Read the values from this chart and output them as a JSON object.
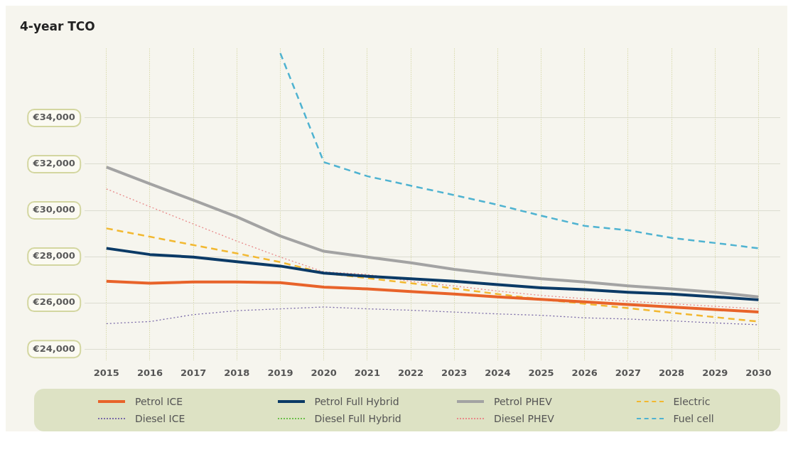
{
  "chart_data": {
    "type": "line",
    "title": "4-year TCO",
    "categories": [
      "2015",
      "2016",
      "2017",
      "2018",
      "2019",
      "2020",
      "2021",
      "2022",
      "2023",
      "2024",
      "2025",
      "2026",
      "2027",
      "2028",
      "2029",
      "2030"
    ],
    "ylim": [
      23500,
      37000
    ],
    "yticks": [
      {
        "value": 24000,
        "label": "€24,000"
      },
      {
        "value": 26000,
        "label": "€26,000"
      },
      {
        "value": 28000,
        "label": "€28,000"
      },
      {
        "value": 30000,
        "label": "€30,000"
      },
      {
        "value": 32000,
        "label": "€32,000"
      },
      {
        "value": 34000,
        "label": "€34,000"
      }
    ],
    "grid": true,
    "legend": "bottom",
    "marker": "none",
    "series": [
      {
        "name": "Petrol ICE",
        "color": "#e8632a",
        "line_style": "solid",
        "values": [
          26930,
          26850,
          26900,
          26900,
          26870,
          26680,
          26600,
          26490,
          26380,
          26260,
          26150,
          26040,
          25930,
          25820,
          25710,
          25600
        ]
      },
      {
        "name": "Petrol Full Hybrid",
        "color": "#0b3a66",
        "line_style": "solid",
        "values": [
          28360,
          28090,
          27980,
          27780,
          27590,
          27290,
          27150,
          27040,
          26930,
          26790,
          26650,
          26570,
          26460,
          26380,
          26260,
          26130
        ]
      },
      {
        "name": "Petrol PHEV",
        "color": "#a3a3a3",
        "line_style": "solid",
        "values": [
          31870,
          31150,
          30440,
          29720,
          28890,
          28230,
          27980,
          27730,
          27450,
          27230,
          27040,
          26900,
          26730,
          26600,
          26460,
          26260
        ]
      },
      {
        "name": "Electric",
        "color": "#f2b830",
        "line_style": "dashed",
        "values": [
          29220,
          28860,
          28500,
          28140,
          27760,
          27290,
          27070,
          26850,
          26620,
          26380,
          26150,
          25960,
          25770,
          25570,
          25380,
          25190
        ]
      },
      {
        "name": "Diesel ICE",
        "color": "#7a6aa8",
        "line_style": "dotted",
        "values": [
          25100,
          25190,
          25490,
          25660,
          25740,
          25820,
          25740,
          25680,
          25600,
          25520,
          25460,
          25350,
          25300,
          25220,
          25130,
          25050
        ]
      },
      {
        "name": "Diesel Full Hybrid",
        "color": "#6cbf4a",
        "line_style": "dotted",
        "values": [
          null,
          null,
          null,
          null,
          null,
          null,
          null,
          null,
          null,
          null,
          null,
          null,
          null,
          null,
          null,
          null
        ]
      },
      {
        "name": "Diesel PHEV",
        "color": "#e88a8a",
        "line_style": "dotted",
        "values": [
          30930,
          30160,
          29410,
          28670,
          27980,
          27340,
          27230,
          26930,
          26730,
          26510,
          26320,
          26180,
          26070,
          25960,
          25850,
          25740
        ]
      },
      {
        "name": "Fuel cell",
        "color": "#4fb3d1",
        "line_style": "dashed",
        "values": [
          null,
          null,
          null,
          null,
          36800,
          32090,
          31480,
          31070,
          30660,
          30240,
          29770,
          29330,
          29140,
          28810,
          28590,
          28360
        ]
      }
    ]
  }
}
